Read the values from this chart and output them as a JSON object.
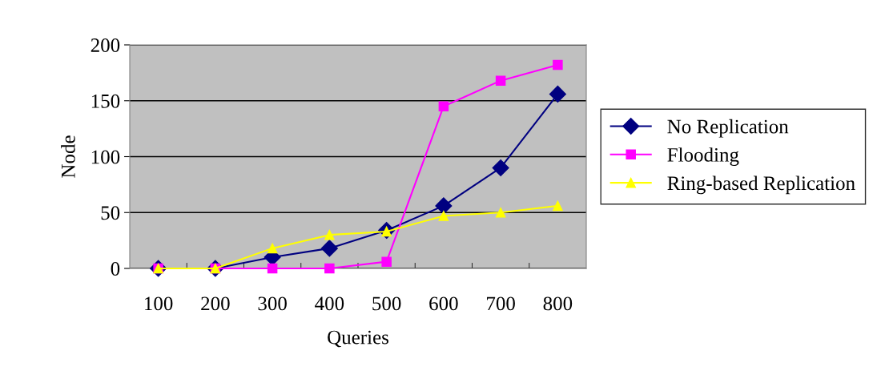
{
  "chart_data": {
    "type": "line",
    "xlabel": "Queries",
    "ylabel": "Node",
    "categories": [
      "100",
      "200",
      "300",
      "400",
      "500",
      "600",
      "700",
      "800"
    ],
    "series": [
      {
        "name": "No Replication",
        "color": "#000080",
        "marker": "diamond",
        "values": [
          0,
          0,
          10,
          18,
          34,
          56,
          90,
          156
        ]
      },
      {
        "name": "Flooding",
        "color": "#ff00ff",
        "marker": "square",
        "values": [
          0,
          0,
          0,
          0,
          6,
          145,
          168,
          182
        ]
      },
      {
        "name": "Ring-based Replication",
        "color": "#ffff00",
        "marker": "triangle",
        "values": [
          0,
          0,
          18,
          30,
          33,
          47,
          50,
          56
        ]
      }
    ],
    "ylim": [
      0,
      200
    ],
    "yticks": [
      0,
      50,
      100,
      150,
      200
    ],
    "grid": "y",
    "legend": "right",
    "line_style": "solid"
  }
}
